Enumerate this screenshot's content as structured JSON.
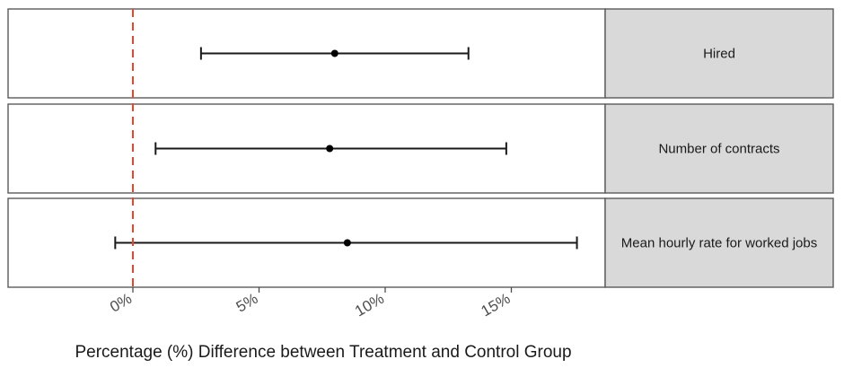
{
  "chart_data": {
    "type": "errorbar-facet",
    "xlabel": "Percentage (%) Difference between Treatment and Control Group",
    "x_ticks": [
      {
        "value": 0,
        "label": "0%"
      },
      {
        "value": 5,
        "label": "5%"
      },
      {
        "value": 10,
        "label": "10%"
      },
      {
        "value": 15,
        "label": "15%"
      }
    ],
    "xlim": [
      -5.2,
      18.5
    ],
    "reference_line": {
      "value": 0,
      "color": "#e8452c",
      "style": "dashed"
    },
    "facets": [
      {
        "label": "Hired",
        "estimate": 8.0,
        "lower": 2.7,
        "upper": 13.3
      },
      {
        "label": "Number of contracts",
        "estimate": 7.8,
        "lower": 0.9,
        "upper": 14.8
      },
      {
        "label": "Mean hourly rate for worked jobs",
        "estimate": 8.5,
        "lower": -0.7,
        "upper": 17.6
      }
    ],
    "colors": {
      "point": "#000000",
      "strip_fill": "#d9d9d9",
      "panel_border": "#5a5a5a"
    }
  }
}
